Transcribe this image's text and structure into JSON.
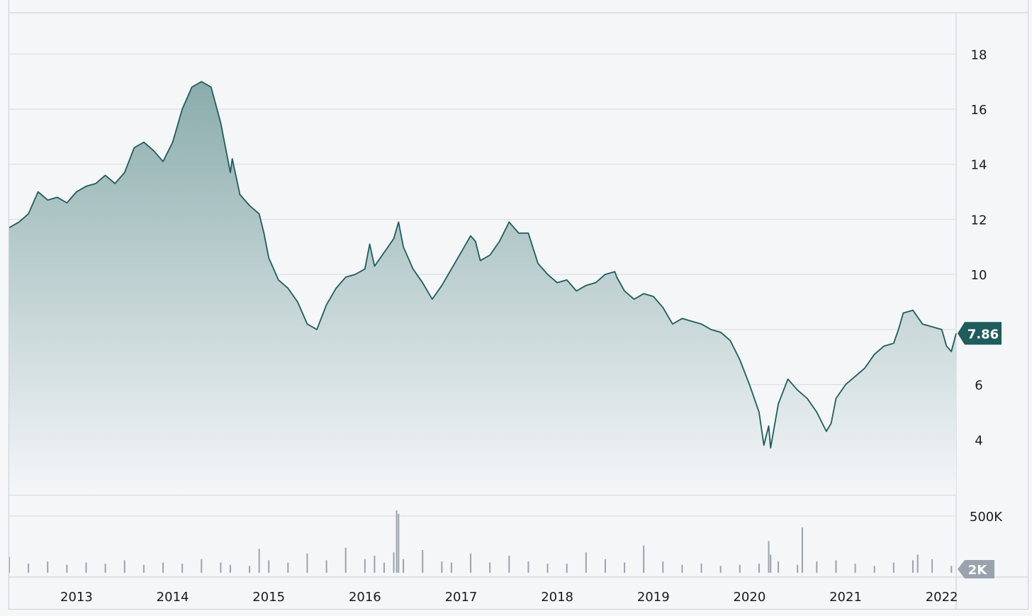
{
  "chart_data": {
    "type": "area",
    "price": {
      "current_label": "7.86",
      "y_ticks": [
        4,
        6,
        8,
        10,
        12,
        14,
        16,
        18
      ],
      "y_tick_labels": [
        "4",
        "6",
        "",
        "10",
        "12",
        "14",
        "16",
        "18"
      ],
      "ylim": [
        2,
        19.5
      ],
      "x": [
        2012.3,
        2012.4,
        2012.5,
        2012.6,
        2012.7,
        2012.8,
        2012.9,
        2013.0,
        2013.1,
        2013.2,
        2013.3,
        2013.4,
        2013.5,
        2013.6,
        2013.7,
        2013.8,
        2013.9,
        2014.0,
        2014.1,
        2014.2,
        2014.3,
        2014.4,
        2014.5,
        2014.6,
        2014.62,
        2014.7,
        2014.8,
        2014.9,
        2014.95,
        2015.0,
        2015.1,
        2015.2,
        2015.3,
        2015.4,
        2015.5,
        2015.6,
        2015.7,
        2015.8,
        2015.9,
        2016.0,
        2016.05,
        2016.1,
        2016.2,
        2016.3,
        2016.35,
        2016.4,
        2016.5,
        2016.6,
        2016.7,
        2016.8,
        2016.9,
        2017.0,
        2017.1,
        2017.15,
        2017.2,
        2017.3,
        2017.4,
        2017.5,
        2017.6,
        2017.7,
        2017.8,
        2017.9,
        2018.0,
        2018.1,
        2018.2,
        2018.3,
        2018.4,
        2018.5,
        2018.6,
        2018.62,
        2018.7,
        2018.8,
        2018.9,
        2019.0,
        2019.1,
        2019.2,
        2019.3,
        2019.4,
        2019.5,
        2019.6,
        2019.7,
        2019.8,
        2019.9,
        2020.0,
        2020.1,
        2020.15,
        2020.2,
        2020.22,
        2020.3,
        2020.4,
        2020.5,
        2020.6,
        2020.7,
        2020.8,
        2020.85,
        2020.9,
        2021.0,
        2021.1,
        2021.2,
        2021.3,
        2021.4,
        2021.5,
        2021.55,
        2021.6,
        2021.7,
        2021.8,
        2021.9,
        2022.0,
        2022.05,
        2022.1,
        2022.15
      ],
      "values": [
        11.7,
        11.9,
        12.2,
        13.0,
        12.7,
        12.8,
        12.6,
        13.0,
        13.2,
        13.3,
        13.6,
        13.3,
        13.7,
        14.6,
        14.8,
        14.5,
        14.1,
        14.8,
        16.0,
        16.8,
        17.0,
        16.8,
        15.5,
        13.7,
        14.2,
        12.9,
        12.5,
        12.2,
        11.5,
        10.6,
        9.8,
        9.5,
        9.0,
        8.2,
        8.0,
        8.9,
        9.5,
        9.9,
        10.0,
        10.2,
        11.1,
        10.3,
        10.8,
        11.3,
        11.9,
        11.0,
        10.2,
        9.7,
        9.1,
        9.6,
        10.2,
        10.8,
        11.4,
        11.2,
        10.5,
        10.7,
        11.2,
        11.9,
        11.5,
        11.5,
        10.4,
        10.0,
        9.7,
        9.8,
        9.4,
        9.6,
        9.7,
        10.0,
        10.1,
        9.9,
        9.4,
        9.1,
        9.3,
        9.2,
        8.8,
        8.2,
        8.4,
        8.3,
        8.2,
        8.0,
        7.9,
        7.6,
        6.9,
        6.0,
        5.0,
        3.8,
        4.5,
        3.7,
        5.3,
        6.2,
        5.8,
        5.5,
        5.0,
        4.3,
        4.6,
        5.5,
        6.0,
        6.3,
        6.6,
        7.1,
        7.4,
        7.5,
        8.0,
        8.6,
        8.7,
        8.2,
        8.1,
        8.0,
        7.4,
        7.2,
        7.86
      ]
    },
    "volume": {
      "tick_labels": [
        "500K",
        "2K"
      ],
      "ylim": [
        0,
        600000
      ],
      "x": [
        2012.3,
        2012.5,
        2012.7,
        2012.9,
        2013.1,
        2013.3,
        2013.5,
        2013.7,
        2013.9,
        2014.1,
        2014.3,
        2014.5,
        2014.6,
        2014.8,
        2014.9,
        2015.0,
        2015.2,
        2015.4,
        2015.6,
        2015.8,
        2016.0,
        2016.1,
        2016.2,
        2016.3,
        2016.33,
        2016.35,
        2016.4,
        2016.6,
        2016.8,
        2016.9,
        2017.1,
        2017.3,
        2017.5,
        2017.7,
        2017.9,
        2018.1,
        2018.3,
        2018.5,
        2018.7,
        2018.9,
        2019.1,
        2019.3,
        2019.5,
        2019.7,
        2019.9,
        2020.1,
        2020.2,
        2020.22,
        2020.3,
        2020.5,
        2020.55,
        2020.7,
        2020.9,
        2021.1,
        2021.3,
        2021.5,
        2021.7,
        2021.75,
        2021.9,
        2022.1
      ],
      "values": [
        140000,
        80000,
        100000,
        70000,
        90000,
        80000,
        110000,
        70000,
        90000,
        80000,
        120000,
        90000,
        70000,
        60000,
        210000,
        110000,
        90000,
        170000,
        110000,
        220000,
        120000,
        150000,
        90000,
        180000,
        550000,
        520000,
        120000,
        200000,
        100000,
        90000,
        170000,
        90000,
        150000,
        100000,
        80000,
        80000,
        180000,
        120000,
        90000,
        240000,
        100000,
        70000,
        80000,
        60000,
        70000,
        80000,
        280000,
        160000,
        100000,
        70000,
        400000,
        100000,
        110000,
        80000,
        60000,
        90000,
        110000,
        160000,
        120000,
        60000
      ]
    },
    "x_tick_labels": [
      "2013",
      "2014",
      "2015",
      "2016",
      "2017",
      "2018",
      "2019",
      "2020",
      "2021",
      "2022"
    ],
    "x_tick_values": [
      2013,
      2014,
      2015,
      2016,
      2017,
      2018,
      2019,
      2020,
      2021,
      2022
    ],
    "xlim": [
      2012.3,
      2022.15
    ],
    "grid": true,
    "colors": {
      "line": "#1f5c5c",
      "fill_top": "#85a8a8",
      "fill_bottom": "#f4f6f8",
      "badge": "#1f5c5c",
      "volume_bar": "#9aa3ad",
      "volume_badge": "#9aa3ad",
      "grid": "#d5dbe2",
      "axis_text": "#1a1a1a"
    }
  }
}
